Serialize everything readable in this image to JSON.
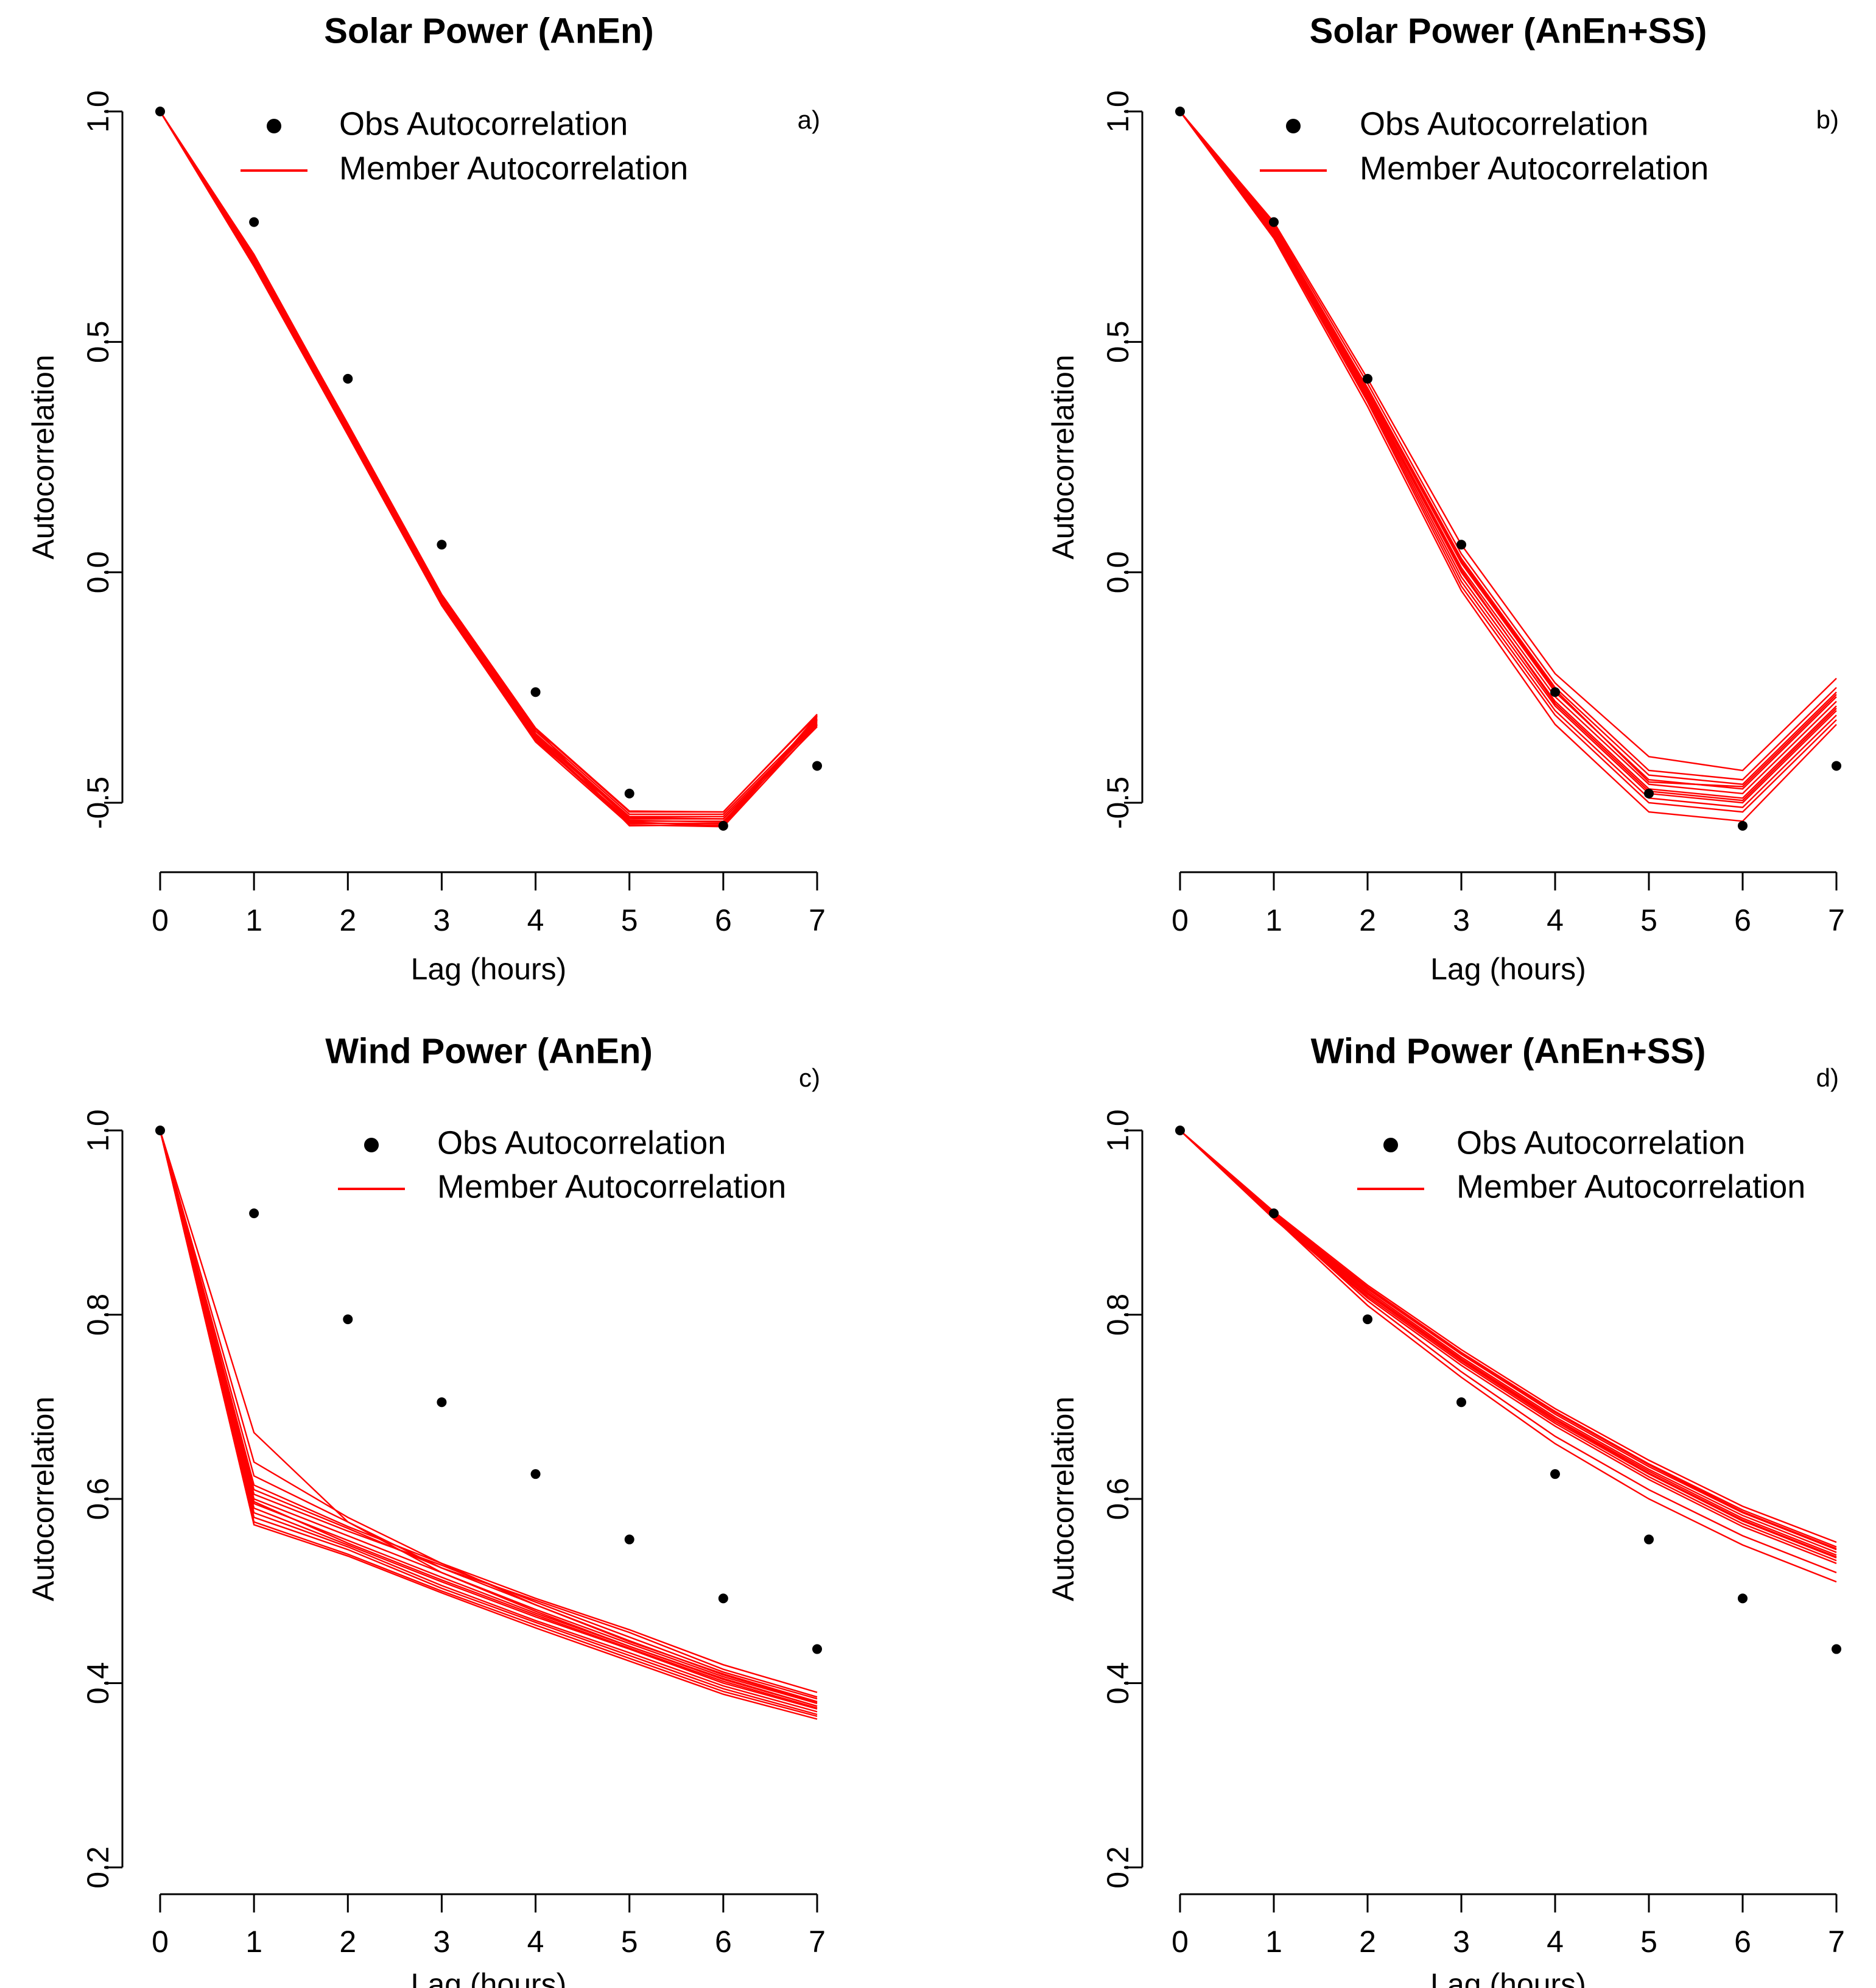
{
  "figure": {
    "kind": "autocorrelation-comparison"
  },
  "chart_data": [
    {
      "type": "line",
      "panel": "a)",
      "title": "Solar Power (AnEn)",
      "xlabel": "Lag (hours)",
      "ylabel": "Autocorrelation",
      "xlim": [
        0,
        7
      ],
      "ylim": [
        -0.5,
        1.0
      ],
      "yticks": [
        "-0.5",
        "0.0",
        "0.5",
        "1.0"
      ],
      "xticks": [
        "0",
        "1",
        "2",
        "3",
        "4",
        "5",
        "6",
        "7"
      ],
      "legend": {
        "position": "top-right",
        "obs_label": "Obs Autocorrelation",
        "member_label": "Member Autocorrelation"
      },
      "obs": {
        "x": [
          0,
          1,
          2,
          3,
          4,
          5,
          6,
          7
        ],
        "y": [
          1.0,
          0.76,
          0.42,
          0.06,
          -0.26,
          -0.48,
          -0.55,
          -0.42
        ]
      },
      "members": [
        [
          1.0,
          0.69,
          0.32,
          -0.05,
          -0.34,
          -0.52,
          -0.52,
          -0.31
        ],
        [
          1.0,
          0.68,
          0.31,
          -0.055,
          -0.345,
          -0.525,
          -0.525,
          -0.32
        ],
        [
          1.0,
          0.675,
          0.315,
          -0.06,
          -0.35,
          -0.53,
          -0.53,
          -0.325
        ],
        [
          1.0,
          0.67,
          0.305,
          -0.065,
          -0.355,
          -0.535,
          -0.535,
          -0.33
        ],
        [
          1.0,
          0.665,
          0.3,
          -0.07,
          -0.36,
          -0.54,
          -0.54,
          -0.335
        ],
        [
          1.0,
          0.672,
          0.31,
          -0.058,
          -0.362,
          -0.545,
          -0.545,
          -0.315
        ],
        [
          1.0,
          0.682,
          0.318,
          -0.052,
          -0.34,
          -0.55,
          -0.548,
          -0.312
        ],
        [
          1.0,
          0.678,
          0.312,
          -0.062,
          -0.352,
          -0.532,
          -0.535,
          -0.328
        ],
        [
          1.0,
          0.668,
          0.302,
          -0.068,
          -0.365,
          -0.538,
          -0.542,
          -0.318
        ],
        [
          1.0,
          0.686,
          0.322,
          -0.048,
          -0.338,
          -0.518,
          -0.52,
          -0.308
        ],
        [
          1.0,
          0.674,
          0.308,
          -0.06,
          -0.358,
          -0.542,
          -0.55,
          -0.322
        ],
        [
          1.0,
          0.664,
          0.298,
          -0.072,
          -0.368,
          -0.548,
          -0.552,
          -0.332
        ]
      ]
    },
    {
      "type": "line",
      "panel": "b)",
      "title": "Solar Power (AnEn+SS)",
      "xlabel": "Lag (hours)",
      "ylabel": "Autocorrelation",
      "xlim": [
        0,
        7
      ],
      "ylim": [
        -0.5,
        1.0
      ],
      "yticks": [
        "-0.5",
        "0.0",
        "0.5",
        "1.0"
      ],
      "xticks": [
        "0",
        "1",
        "2",
        "3",
        "4",
        "5",
        "6",
        "7"
      ],
      "legend": {
        "position": "top-right",
        "obs_label": "Obs Autocorrelation",
        "member_label": "Member Autocorrelation"
      },
      "obs": {
        "x": [
          0,
          1,
          2,
          3,
          4,
          5,
          6,
          7
        ],
        "y": [
          1.0,
          0.76,
          0.42,
          0.06,
          -0.26,
          -0.48,
          -0.55,
          -0.42
        ]
      },
      "members": [
        [
          1.0,
          0.76,
          0.42,
          0.06,
          -0.22,
          -0.4,
          -0.43,
          -0.23
        ],
        [
          1.0,
          0.755,
          0.41,
          0.04,
          -0.24,
          -0.43,
          -0.45,
          -0.25
        ],
        [
          1.0,
          0.75,
          0.4,
          0.03,
          -0.25,
          -0.44,
          -0.46,
          -0.26
        ],
        [
          1.0,
          0.745,
          0.395,
          0.02,
          -0.26,
          -0.45,
          -0.47,
          -0.27
        ],
        [
          1.0,
          0.74,
          0.39,
          0.01,
          -0.27,
          -0.46,
          -0.48,
          -0.28
        ],
        [
          1.0,
          0.735,
          0.385,
          0.0,
          -0.28,
          -0.47,
          -0.49,
          -0.29
        ],
        [
          1.0,
          0.73,
          0.38,
          -0.01,
          -0.29,
          -0.48,
          -0.5,
          -0.3
        ],
        [
          1.0,
          0.735,
          0.375,
          -0.02,
          -0.3,
          -0.49,
          -0.51,
          -0.31
        ],
        [
          1.0,
          0.73,
          0.37,
          -0.03,
          -0.31,
          -0.5,
          -0.52,
          -0.32
        ],
        [
          1.0,
          0.725,
          0.36,
          -0.04,
          -0.33,
          -0.52,
          -0.54,
          -0.33
        ],
        [
          1.0,
          0.745,
          0.4,
          0.025,
          -0.255,
          -0.455,
          -0.465,
          -0.265
        ],
        [
          1.0,
          0.738,
          0.388,
          0.005,
          -0.285,
          -0.475,
          -0.495,
          -0.295
        ]
      ]
    },
    {
      "type": "line",
      "panel": "c)",
      "title": "Wind Power (AnEn)",
      "xlabel": "Lag (hours)",
      "ylabel": "Autocorrelation",
      "xlim": [
        0,
        7
      ],
      "ylim": [
        0.2,
        1.0
      ],
      "yticks": [
        "0.2",
        "0.4",
        "0.6",
        "0.8",
        "1.0"
      ],
      "xticks": [
        "0",
        "1",
        "2",
        "3",
        "4",
        "5",
        "6",
        "7"
      ],
      "legend": {
        "position": "top-right",
        "obs_label": "Obs Autocorrelation",
        "member_label": "Member Autocorrelation"
      },
      "obs": {
        "x": [
          0,
          1,
          2,
          3,
          4,
          5,
          6,
          7
        ],
        "y": [
          1.0,
          0.91,
          0.795,
          0.705,
          0.627,
          0.556,
          0.492,
          0.437
        ]
      },
      "members": [
        [
          1.0,
          0.672,
          0.575,
          0.52,
          0.478,
          0.44,
          0.405,
          0.375
        ],
        [
          1.0,
          0.64,
          0.58,
          0.53,
          0.485,
          0.445,
          0.41,
          0.38
        ],
        [
          1.0,
          0.625,
          0.575,
          0.525,
          0.49,
          0.455,
          0.415,
          0.385
        ],
        [
          1.0,
          0.615,
          0.57,
          0.53,
          0.492,
          0.458,
          0.42,
          0.39
        ],
        [
          1.0,
          0.605,
          0.565,
          0.528,
          0.488,
          0.45,
          0.412,
          0.383
        ],
        [
          1.0,
          0.6,
          0.56,
          0.52,
          0.48,
          0.443,
          0.407,
          0.378
        ],
        [
          1.0,
          0.595,
          0.555,
          0.515,
          0.476,
          0.44,
          0.404,
          0.375
        ],
        [
          1.0,
          0.59,
          0.55,
          0.51,
          0.472,
          0.437,
          0.4,
          0.372
        ],
        [
          1.0,
          0.585,
          0.548,
          0.506,
          0.468,
          0.433,
          0.397,
          0.369
        ],
        [
          1.0,
          0.58,
          0.545,
          0.503,
          0.466,
          0.43,
          0.394,
          0.366
        ],
        [
          1.0,
          0.575,
          0.54,
          0.5,
          0.463,
          0.427,
          0.391,
          0.364
        ],
        [
          1.0,
          0.572,
          0.538,
          0.498,
          0.46,
          0.424,
          0.388,
          0.361
        ],
        [
          1.0,
          0.61,
          0.568,
          0.525,
          0.485,
          0.446,
          0.409,
          0.379
        ],
        [
          1.0,
          0.597,
          0.552,
          0.512,
          0.474,
          0.438,
          0.402,
          0.373
        ]
      ]
    },
    {
      "type": "line",
      "panel": "d)",
      "title": "Wind Power (AnEn+SS)",
      "xlabel": "Lag (hours)",
      "ylabel": "Autocorrelation",
      "xlim": [
        0,
        7
      ],
      "ylim": [
        0.2,
        1.0
      ],
      "yticks": [
        "0.2",
        "0.4",
        "0.6",
        "0.8",
        "1.0"
      ],
      "xticks": [
        "0",
        "1",
        "2",
        "3",
        "4",
        "5",
        "6",
        "7"
      ],
      "legend": {
        "position": "top-right",
        "obs_label": "Obs Autocorrelation",
        "member_label": "Member Autocorrelation"
      },
      "obs": {
        "x": [
          0,
          1,
          2,
          3,
          4,
          5,
          6,
          7
        ],
        "y": [
          1.0,
          0.91,
          0.795,
          0.705,
          0.627,
          0.556,
          0.492,
          0.437
        ]
      },
      "members": [
        [
          1.0,
          0.912,
          0.832,
          0.762,
          0.698,
          0.642,
          0.592,
          0.553
        ],
        [
          1.0,
          0.91,
          0.83,
          0.759,
          0.695,
          0.638,
          0.588,
          0.548
        ],
        [
          1.0,
          0.909,
          0.828,
          0.757,
          0.692,
          0.635,
          0.585,
          0.545
        ],
        [
          1.0,
          0.908,
          0.826,
          0.754,
          0.689,
          0.632,
          0.582,
          0.542
        ],
        [
          1.0,
          0.907,
          0.824,
          0.752,
          0.687,
          0.63,
          0.579,
          0.539
        ],
        [
          1.0,
          0.906,
          0.822,
          0.75,
          0.684,
          0.627,
          0.576,
          0.536
        ],
        [
          1.0,
          0.905,
          0.82,
          0.748,
          0.682,
          0.624,
          0.573,
          0.533
        ],
        [
          1.0,
          0.904,
          0.818,
          0.745,
          0.679,
          0.621,
          0.57,
          0.53
        ],
        [
          1.0,
          0.906,
          0.815,
          0.738,
          0.668,
          0.61,
          0.56,
          0.52
        ],
        [
          1.0,
          0.905,
          0.81,
          0.732,
          0.66,
          0.6,
          0.55,
          0.51
        ],
        [
          1.0,
          0.911,
          0.829,
          0.758,
          0.694,
          0.637,
          0.586,
          0.546
        ],
        [
          1.0,
          0.907,
          0.823,
          0.751,
          0.686,
          0.628,
          0.577,
          0.537
        ]
      ]
    }
  ]
}
